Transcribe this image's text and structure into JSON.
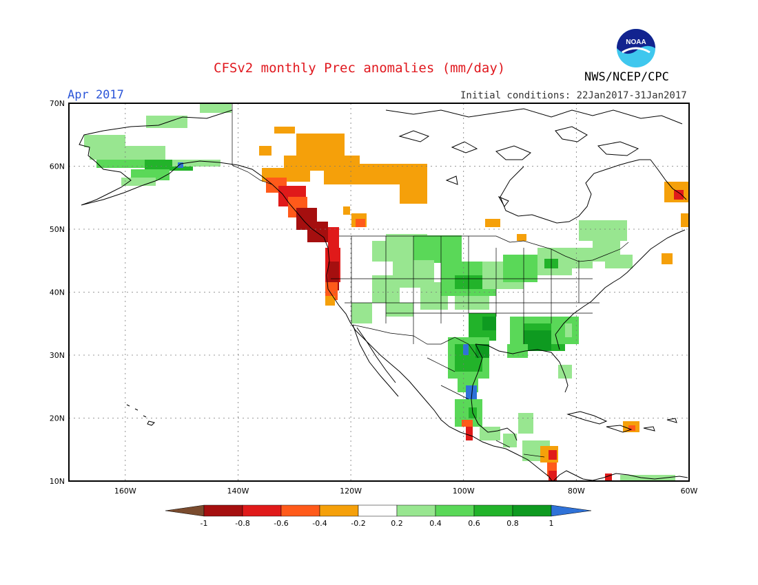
{
  "header": {
    "title": "CFSv2 monthly Prec anomalies (mm/day)",
    "month": "Apr 2017",
    "initial_conditions": "Initial conditions: 22Jan2017-31Jan2017",
    "agency": "NWS/NCEP/CPC",
    "logo_text": "NOAA"
  },
  "map": {
    "lat_range": [
      10,
      70
    ],
    "lon_range": [
      -170,
      -60
    ],
    "lat_labels": [
      "70N",
      "60N",
      "50N",
      "40N",
      "30N",
      "20N",
      "10N"
    ],
    "lon_labels": [
      "160W",
      "140W",
      "120W",
      "100W",
      "80W",
      "60W"
    ]
  },
  "colorbar": {
    "labels": [
      "-1",
      "-0.8",
      "-0.6",
      "-0.4",
      "-0.2",
      "0.2",
      "0.4",
      "0.6",
      "0.8",
      "1"
    ],
    "colors": [
      "#7a4b2e",
      "#a50f0f",
      "#e01a1a",
      "#ff5a1a",
      "#f5a00a",
      "#ffffff",
      "#98e690",
      "#5ad858",
      "#22b32a",
      "#0e9a20",
      "#2f72d8"
    ]
  }
}
